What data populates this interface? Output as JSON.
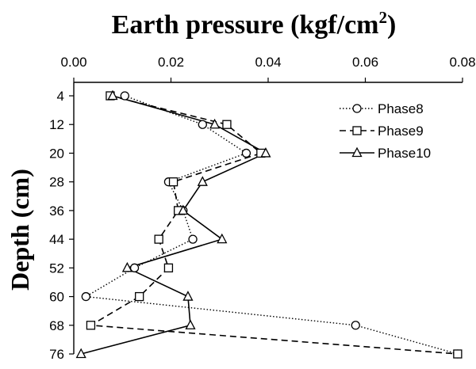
{
  "chart_data": {
    "type": "line",
    "title": "Earth pressure (kgf/cm",
    "title_superscript": "2",
    "title_suffix": ")",
    "xlabel": "Earth pressure (kgf/cm2)",
    "ylabel": "Depth (cm)",
    "xlim": [
      0,
      0.08
    ],
    "ylim": [
      76,
      4
    ],
    "x_ticks": [
      "0.00",
      "0.02",
      "0.04",
      "0.06",
      "0.08"
    ],
    "y_ticks": [
      "4",
      "12",
      "20",
      "28",
      "36",
      "44",
      "52",
      "60",
      "68",
      "76"
    ],
    "x_axis_position": "top",
    "y_axis_inverted": true,
    "grid": false,
    "legend_position": "top-right",
    "depths": [
      4,
      12,
      20,
      28,
      36,
      44,
      52,
      60,
      68,
      76
    ],
    "series": [
      {
        "name": "Phase8",
        "line_style": "dotted",
        "marker": "circle",
        "x": [
          0.0105,
          0.0265,
          0.0355,
          0.0195,
          0.0225,
          0.0245,
          0.0125,
          0.0025,
          0.058,
          0.079
        ],
        "y": [
          4,
          12,
          20,
          28,
          36,
          44,
          52,
          60,
          68,
          76
        ]
      },
      {
        "name": "Phase9",
        "line_style": "dashed",
        "marker": "square",
        "x": [
          0.0075,
          0.0315,
          0.0385,
          0.0205,
          0.0215,
          0.0175,
          0.0195,
          0.0135,
          0.0035,
          0.079
        ],
        "y": [
          4,
          12,
          20,
          28,
          36,
          44,
          52,
          60,
          68,
          76
        ]
      },
      {
        "name": "Phase10",
        "line_style": "solid",
        "marker": "triangle",
        "x": [
          0.008,
          0.029,
          0.0395,
          0.0265,
          0.0225,
          0.0305,
          0.011,
          0.0235,
          0.024,
          0.0015
        ],
        "y": [
          4,
          12,
          20,
          28,
          36,
          44,
          52,
          60,
          68,
          76
        ]
      }
    ]
  }
}
